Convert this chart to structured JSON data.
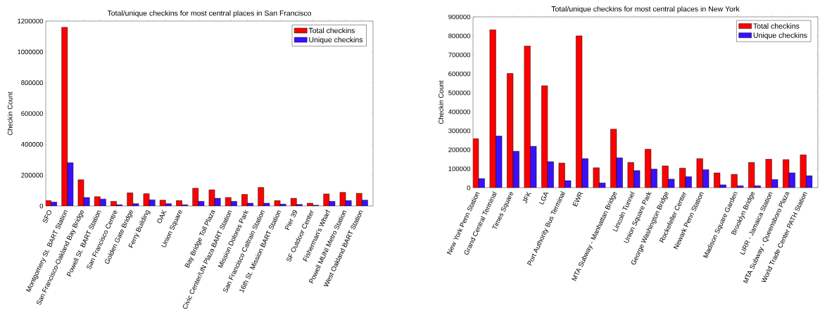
{
  "chart_data": [
    {
      "type": "bar",
      "title": "Total/unique checkins for most central places in San Francisco",
      "ylabel": "Checkin Count",
      "categories": [
        "SFO",
        "Montgomery St. BART Station",
        "San Francisco-Oakland Bay Bridge",
        "Powell St. BART Station",
        "San Francisco Centre",
        "Golden Gate Bridge",
        "Ferry Building",
        "OAK",
        "Union Square",
        null,
        "Bay Bridge Toll Plaza",
        "Civic Center/UN Plaza BART Station",
        "Mission Dolores Park",
        "San Francisco Caltrain Station",
        "16th St. Mission BART Station",
        "Pier 39",
        "SF Outdoor Center",
        "Fisherman's Wharf",
        "Powell MUNI Metro Station",
        "West Oakland BART Station"
      ],
      "series": [
        {
          "name": "Total checkins",
          "color": "#ff0000",
          "values": [
            35000,
            1160000,
            170000,
            60000,
            30000,
            85000,
            80000,
            38000,
            35000,
            115000,
            105000,
            55000,
            75000,
            120000,
            35000,
            50000,
            18000,
            78000,
            88000,
            82000
          ]
        },
        {
          "name": "Unique checkins",
          "color": "#3a10ff",
          "values": [
            25000,
            280000,
            55000,
            45000,
            8000,
            15000,
            40000,
            15000,
            8000,
            30000,
            50000,
            30000,
            18000,
            18000,
            12000,
            10000,
            5000,
            30000,
            35000,
            38000
          ]
        }
      ],
      "ylim": [
        0,
        1200000
      ],
      "yticks": [
        0,
        200000,
        400000,
        600000,
        800000,
        1000000,
        1200000
      ],
      "legend": "top right"
    },
    {
      "type": "bar",
      "title": "Total/unique checkins for most central places in New York",
      "ylabel": "Checkin Count",
      "categories": [
        "New York Penn Station",
        "Grand Central Terminal",
        "Times Square",
        "JFK",
        "LGA",
        "Port Authority Bus Terminal",
        "EWR",
        null,
        "MTA Subway - Manhattan Bridge",
        "Lincoln Tunnel",
        "Union Square Park",
        "George Washington Bridge",
        "Rockefeller Center",
        "Newark Penn Station",
        null,
        "Madison Square Garden",
        "Brooklyn Bridge",
        "LIRR - Jamaica Station",
        "MTA Subway - Queensboro Plaza",
        "World Trade Center PATH Station"
      ],
      "series": [
        {
          "name": "Total checkins",
          "color": "#ff0000",
          "values": [
            258000,
            832000,
            602000,
            746000,
            537000,
            130000,
            800000,
            105000,
            308000,
            133000,
            203000,
            115000,
            103000,
            153000,
            78000,
            70000,
            133000,
            150000,
            148000,
            173000
          ]
        },
        {
          "name": "Unique checkins",
          "color": "#3a10ff",
          "values": [
            48000,
            272000,
            192000,
            218000,
            137000,
            37000,
            153000,
            25000,
            157000,
            90000,
            98000,
            45000,
            58000,
            95000,
            15000,
            10000,
            10000,
            43000,
            78000,
            63000
          ]
        }
      ],
      "ylim": [
        0,
        900000
      ],
      "yticks": [
        0,
        100000,
        200000,
        300000,
        400000,
        500000,
        600000,
        700000,
        800000,
        900000
      ],
      "legend": "top right"
    }
  ]
}
